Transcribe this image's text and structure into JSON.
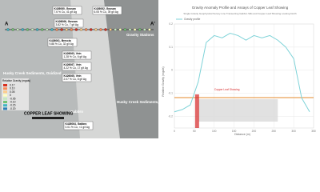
{
  "map": {
    "endpoints": [
      "A",
      "A'"
    ],
    "station_label": "Gravity Stations",
    "units": [
      "Husky Creek Sediments, Oxidized",
      "Gabbro",
      "Husky Creek Sediments, Mineralized"
    ],
    "samples": [
      {
        "id": "K426060, Gossan",
        "assay": "7.6 % Cu, 41 g/t Ag"
      },
      {
        "id": "K426062, Gossan",
        "assay": "6.05 % Cu, 39 g/t Ag"
      },
      {
        "id": "K426066, Gossan",
        "assay": "3.82 % Cu, 7 g/t Ag"
      },
      {
        "id": "K426061, Breccia",
        "assay": "9.88 % Cu, 32 g/t Ag"
      },
      {
        "id": "K426063, Vein",
        "assay": "1.28 % Cu, 6 g/t Ag"
      },
      {
        "id": "K426067, Vein",
        "assay": "4.22 % Cu, 17 g/t Ag"
      },
      {
        "id": "K426065, Vein",
        "assay": "2.07 % Cu, 8 g/t Ag"
      },
      {
        "id": "K426064, Gabbro",
        "assay": "0.01 % Cu, <1 g/t Ag"
      }
    ],
    "legend": {
      "title": "Relative Gravity (mgals)",
      "items": [
        {
          "label": "0.17",
          "color": "#d7301f"
        },
        {
          "label": "0.10",
          "color": "#fc8d59"
        },
        {
          "label": "0.05",
          "color": "#fdcc8a"
        },
        {
          "label": "0",
          "color": "#ffffbf"
        },
        {
          "label": "-0.05",
          "color": "#c7e9c0"
        },
        {
          "label": "-0.10",
          "color": "#74c476"
        },
        {
          "label": "-0.15",
          "color": "#41b6c4"
        },
        {
          "label": "-0.20",
          "color": "#2c7fb8"
        }
      ]
    },
    "showing": "COPPER LEAF SHOWING"
  },
  "chart_data": {
    "type": "line",
    "title": "Gravity Anomaly Profile and Assays of Copper Leaf Showing",
    "subtitle": "Single Gravity Geophysical Survey Line Transecting Gabbro Sills and Copper Leaf Showing Looking North",
    "x_label": "Distance (m)",
    "y_label": "Relative Gravity (mgals)",
    "annotation": "Copper Leaf Showing",
    "x": [
      0,
      20,
      40,
      60,
      80,
      100,
      120,
      140,
      160,
      180,
      200,
      220,
      240,
      260,
      280,
      300,
      320,
      340
    ],
    "series": [
      {
        "name": "Gravity profile",
        "color": "#7fd3d8",
        "values": [
          -0.18,
          -0.17,
          -0.15,
          -0.05,
          0.12,
          0.15,
          0.14,
          0.16,
          0.15,
          0.13,
          0.15,
          0.14,
          0.15,
          0.13,
          0.1,
          0.05,
          -0.12,
          -0.18
        ]
      }
    ],
    "xlim": [
      0,
      350
    ],
    "ylim": [
      -0.25,
      0.2
    ],
    "xticks": [
      0,
      50,
      100,
      150,
      200,
      250,
      300,
      350
    ],
    "yticks": [
      -0.2,
      -0.1,
      0,
      0.1,
      0.2
    ],
    "grid": true
  }
}
